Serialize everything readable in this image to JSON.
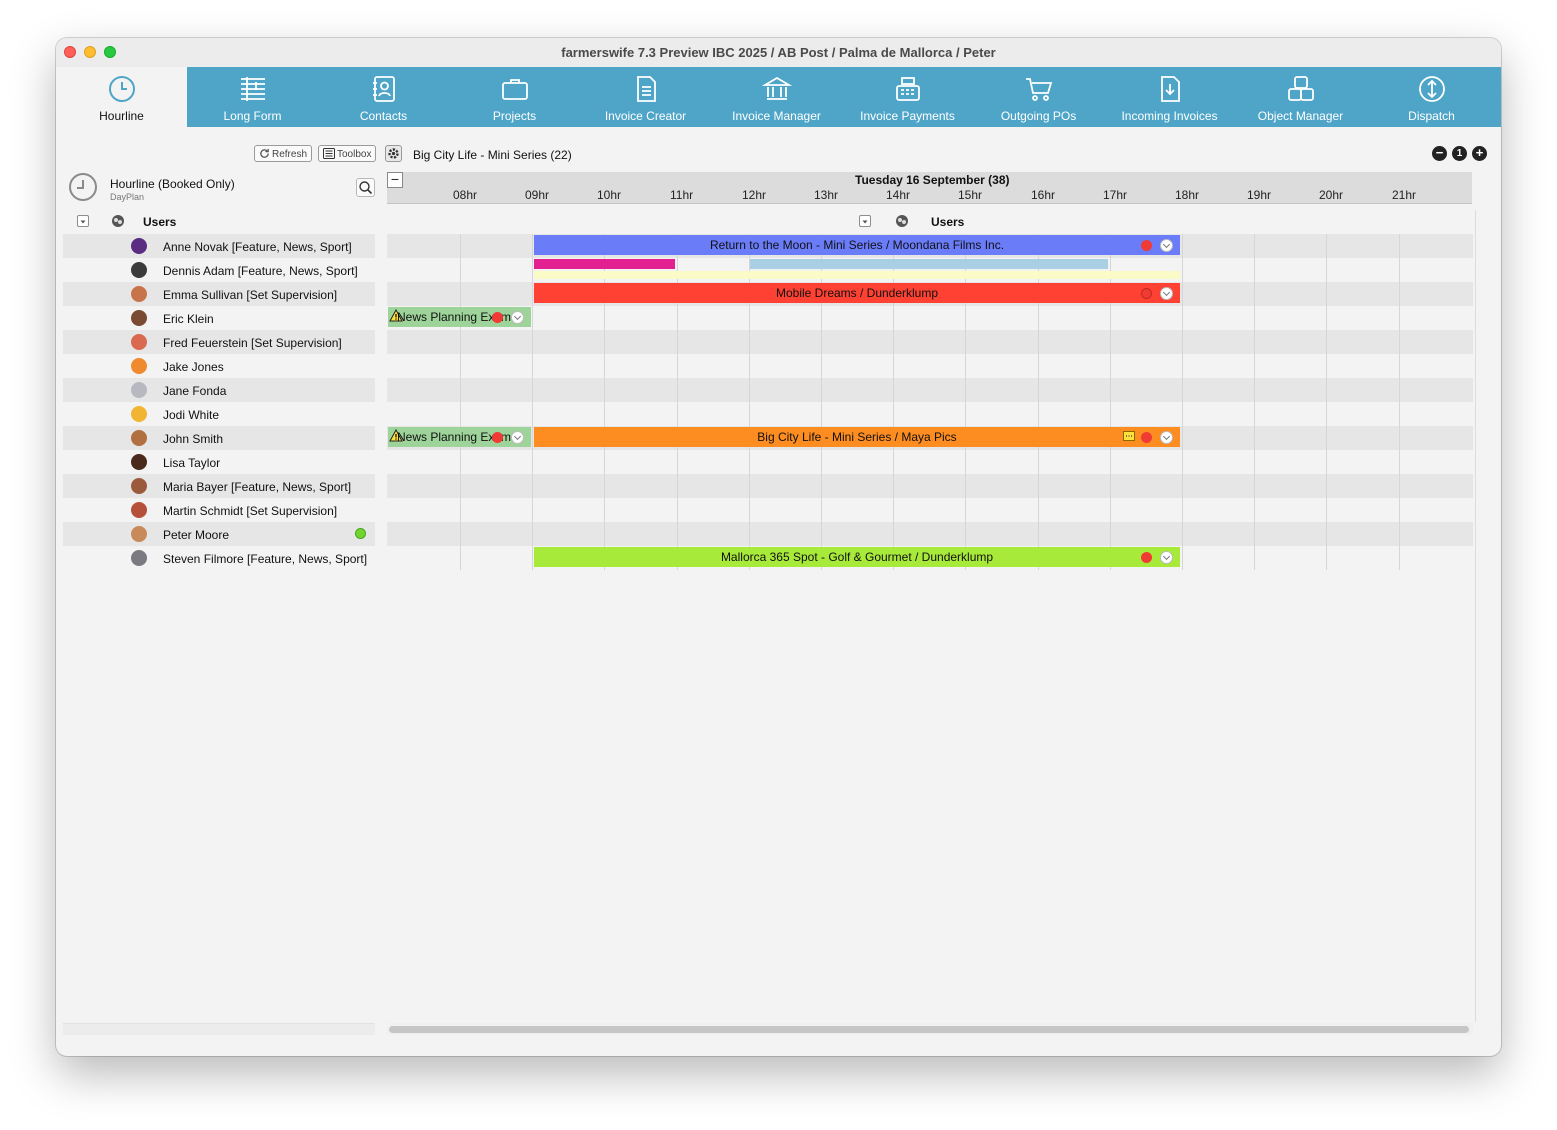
{
  "window": {
    "title": "farmerswife 7.3  Preview IBC 2025 / AB Post / Palma de Mallorca / Peter"
  },
  "toolbar": {
    "items": [
      {
        "label": "Hourline",
        "icon": "clock-icon",
        "active": true
      },
      {
        "label": "Long Form",
        "icon": "longform-icon"
      },
      {
        "label": "Contacts",
        "icon": "contacts-icon"
      },
      {
        "label": "Projects",
        "icon": "briefcase-icon"
      },
      {
        "label": "Invoice Creator",
        "icon": "document-icon"
      },
      {
        "label": "Invoice Manager",
        "icon": "bank-icon"
      },
      {
        "label": "Invoice Payments",
        "icon": "cash-register-icon"
      },
      {
        "label": "Outgoing POs",
        "icon": "cart-icon"
      },
      {
        "label": "Incoming Invoices",
        "icon": "download-document-icon"
      },
      {
        "label": "Object Manager",
        "icon": "objects-icon"
      },
      {
        "label": "Dispatch",
        "icon": "dispatch-icon"
      }
    ]
  },
  "left_panel": {
    "refresh_label": "Refresh",
    "toolbox_label": "Toolbox",
    "view_title": "Hourline (Booked Only)",
    "view_subtitle": "DayPlan",
    "group_label": "Users",
    "users": [
      {
        "name": "Anne Novak [Feature, News, Sport]",
        "avatar": "#5a2d82"
      },
      {
        "name": "Dennis Adam [Feature, News, Sport]",
        "avatar": "#3b3b3b"
      },
      {
        "name": "Emma Sullivan [Set Supervision]",
        "avatar": "#c8744a"
      },
      {
        "name": "Eric Klein",
        "avatar": "#7a4a32"
      },
      {
        "name": "Fred Feuerstein [Set Supervision]",
        "avatar": "#d9694f"
      },
      {
        "name": "Jake Jones",
        "avatar": "#f08a2e"
      },
      {
        "name": "Jane Fonda",
        "avatar": "#b8b8c0"
      },
      {
        "name": "Jodi White",
        "avatar": "#f2b533"
      },
      {
        "name": "John Smith",
        "avatar": "#b07040"
      },
      {
        "name": "Lisa Taylor",
        "avatar": "#4a2a1a"
      },
      {
        "name": "Maria Bayer [Feature, News, Sport]",
        "avatar": "#9c5a3c"
      },
      {
        "name": "Martin Schmidt [Set Supervision]",
        "avatar": "#b5503a"
      },
      {
        "name": "Peter Moore",
        "avatar": "#c88a5a",
        "online": true
      },
      {
        "name": "Steven Filmore [Feature, News, Sport]",
        "avatar": "#7a7a80"
      }
    ]
  },
  "schedule": {
    "project_label": "Big City Life - Mini Series (22)",
    "date_label": "Tuesday 16 September (38)",
    "group_label": "Users",
    "hours": [
      "08hr",
      "09hr",
      "10hr",
      "11hr",
      "12hr",
      "13hr",
      "14hr",
      "15hr",
      "16hr",
      "17hr",
      "18hr",
      "19hr",
      "20hr",
      "21hr"
    ],
    "colors": {
      "blue": "#6b7cf9",
      "red": "#fe4133",
      "orange": "#fd8c21",
      "lime": "#a8ea3a",
      "green": "#9ed39a",
      "magenta": "#e3208f",
      "lightblue": "#a9cfe5",
      "yellow": "#fbfbc8"
    },
    "bookings": {
      "moon": "Return to the Moon - Mini Series / Moondana Films Inc.",
      "mobile": "Mobile Dreams / Dunderklump",
      "news1": "News Planning Example",
      "news2": "News Planning Example",
      "bigcity": "Big City Life - Mini Series / Maya Pics",
      "mallorca": "Mallorca 365 Spot - Golf & Gourmet / Dunderklump"
    }
  }
}
